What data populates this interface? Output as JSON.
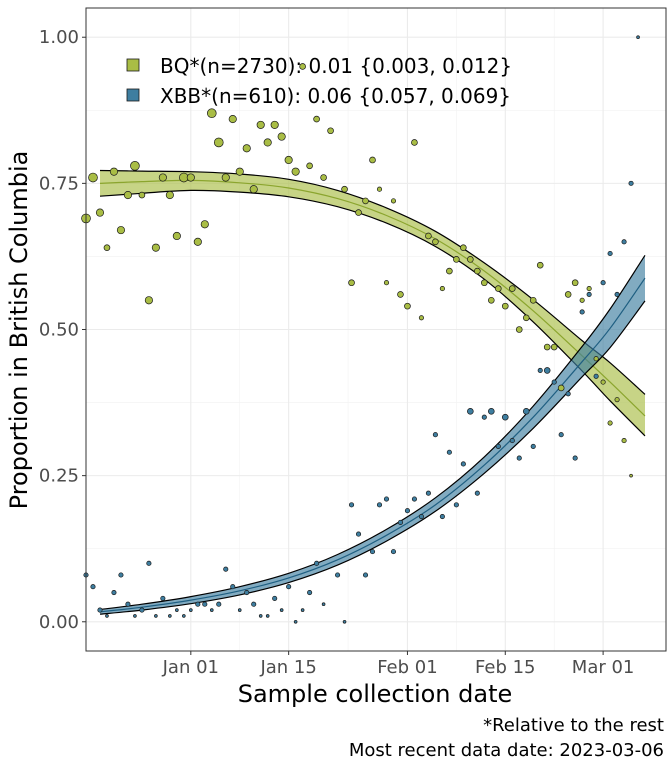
{
  "chart_data": {
    "type": "scatter",
    "xlabel": "Sample collection date",
    "ylabel": "Proportion in British Columbia",
    "x_tick_labels": [
      "Jan 01",
      "Jan 15",
      "Feb 01",
      "Feb 15",
      "Mar 01"
    ],
    "x_ticks": [
      "2023-01-01",
      "2023-01-15",
      "2023-02-01",
      "2023-02-15",
      "2023-03-01"
    ],
    "x_range": [
      "2022-12-17",
      "2023-03-10"
    ],
    "y_tick_labels": [
      "0.00",
      "0.25",
      "0.50",
      "0.75",
      "1.00"
    ],
    "y_ticks": [
      0,
      0.25,
      0.5,
      0.75,
      1.0
    ],
    "ylim": [
      -0.05,
      1.05
    ],
    "grid": true,
    "legend_position": "top-left",
    "captions": [
      "*Relative to the rest",
      "Most recent data date: 2023-03-06"
    ],
    "series": [
      {
        "name": "BQ*(n=2730): 0.01 {0.003, 0.012}",
        "fill_color": "#a9bd45",
        "point_color": "#a9bd45",
        "line_color": "#8ba52e",
        "fit": [
          {
            "x": "2022-12-19",
            "y": 0.75,
            "lo": 0.728,
            "hi": 0.772
          },
          {
            "x": "2022-12-25",
            "y": 0.753,
            "lo": 0.733,
            "hi": 0.771
          },
          {
            "x": "2023-01-01",
            "y": 0.755,
            "lo": 0.738,
            "hi": 0.77
          },
          {
            "x": "2023-01-08",
            "y": 0.751,
            "lo": 0.735,
            "hi": 0.766
          },
          {
            "x": "2023-01-15",
            "y": 0.742,
            "lo": 0.727,
            "hi": 0.757
          },
          {
            "x": "2023-01-22",
            "y": 0.724,
            "lo": 0.71,
            "hi": 0.738
          },
          {
            "x": "2023-01-29",
            "y": 0.695,
            "lo": 0.682,
            "hi": 0.708
          },
          {
            "x": "2023-02-05",
            "y": 0.655,
            "lo": 0.642,
            "hi": 0.668
          },
          {
            "x": "2023-02-12",
            "y": 0.6,
            "lo": 0.586,
            "hi": 0.614
          },
          {
            "x": "2023-02-19",
            "y": 0.532,
            "lo": 0.513,
            "hi": 0.551
          },
          {
            "x": "2023-02-26",
            "y": 0.455,
            "lo": 0.429,
            "hi": 0.481
          },
          {
            "x": "2023-03-02",
            "y": 0.41,
            "lo": 0.378,
            "hi": 0.443
          },
          {
            "x": "2023-03-07",
            "y": 0.352,
            "lo": 0.318,
            "hi": 0.389
          }
        ],
        "points": [
          {
            "x": "2022-12-17",
            "y": 0.69,
            "s": 5
          },
          {
            "x": "2022-12-18",
            "y": 0.76,
            "s": 5
          },
          {
            "x": "2022-12-19",
            "y": 0.7,
            "s": 4
          },
          {
            "x": "2022-12-20",
            "y": 0.64,
            "s": 3
          },
          {
            "x": "2022-12-21",
            "y": 0.77,
            "s": 4
          },
          {
            "x": "2022-12-22",
            "y": 0.67,
            "s": 4
          },
          {
            "x": "2022-12-23",
            "y": 0.73,
            "s": 4
          },
          {
            "x": "2022-12-24",
            "y": 0.78,
            "s": 5
          },
          {
            "x": "2022-12-25",
            "y": 0.73,
            "s": 3
          },
          {
            "x": "2022-12-26",
            "y": 0.55,
            "s": 4
          },
          {
            "x": "2022-12-27",
            "y": 0.64,
            "s": 4
          },
          {
            "x": "2022-12-28",
            "y": 0.76,
            "s": 4
          },
          {
            "x": "2022-12-29",
            "y": 0.73,
            "s": 4
          },
          {
            "x": "2022-12-30",
            "y": 0.66,
            "s": 4
          },
          {
            "x": "2022-12-31",
            "y": 0.76,
            "s": 5
          },
          {
            "x": "2023-01-01",
            "y": 0.76,
            "s": 4
          },
          {
            "x": "2023-01-02",
            "y": 0.65,
            "s": 4
          },
          {
            "x": "2023-01-03",
            "y": 0.68,
            "s": 4
          },
          {
            "x": "2023-01-04",
            "y": 0.87,
            "s": 5
          },
          {
            "x": "2023-01-05",
            "y": 0.82,
            "s": 5
          },
          {
            "x": "2023-01-06",
            "y": 0.76,
            "s": 4
          },
          {
            "x": "2023-01-07",
            "y": 0.86,
            "s": 4
          },
          {
            "x": "2023-01-08",
            "y": 0.77,
            "s": 4
          },
          {
            "x": "2023-01-09",
            "y": 0.81,
            "s": 4
          },
          {
            "x": "2023-01-10",
            "y": 0.74,
            "s": 4
          },
          {
            "x": "2023-01-11",
            "y": 0.85,
            "s": 4
          },
          {
            "x": "2023-01-12",
            "y": 0.82,
            "s": 4
          },
          {
            "x": "2023-01-13",
            "y": 0.85,
            "s": 4
          },
          {
            "x": "2023-01-14",
            "y": 0.83,
            "s": 4
          },
          {
            "x": "2023-01-15",
            "y": 0.79,
            "s": 4
          },
          {
            "x": "2023-01-16",
            "y": 0.77,
            "s": 4
          },
          {
            "x": "2023-01-17",
            "y": 0.95,
            "s": 3
          },
          {
            "x": "2023-01-18",
            "y": 0.78,
            "s": 3
          },
          {
            "x": "2023-01-19",
            "y": 0.86,
            "s": 3
          },
          {
            "x": "2023-01-20",
            "y": 0.76,
            "s": 3
          },
          {
            "x": "2023-01-21",
            "y": 0.84,
            "s": 3
          },
          {
            "x": "2023-01-23",
            "y": 0.74,
            "s": 3
          },
          {
            "x": "2023-01-24",
            "y": 0.58,
            "s": 3
          },
          {
            "x": "2023-01-25",
            "y": 0.7,
            "s": 3
          },
          {
            "x": "2023-01-26",
            "y": 0.72,
            "s": 3
          },
          {
            "x": "2023-01-27",
            "y": 0.79,
            "s": 3
          },
          {
            "x": "2023-01-28",
            "y": 0.74,
            "s": 2
          },
          {
            "x": "2023-01-29",
            "y": 0.58,
            "s": 2
          },
          {
            "x": "2023-01-30",
            "y": 0.72,
            "s": 2
          },
          {
            "x": "2023-01-31",
            "y": 0.56,
            "s": 3
          },
          {
            "x": "2023-02-01",
            "y": 0.54,
            "s": 3
          },
          {
            "x": "2023-02-02",
            "y": 0.82,
            "s": 3
          },
          {
            "x": "2023-02-03",
            "y": 0.52,
            "s": 2
          },
          {
            "x": "2023-02-04",
            "y": 0.66,
            "s": 3
          },
          {
            "x": "2023-02-05",
            "y": 0.65,
            "s": 3
          },
          {
            "x": "2023-02-06",
            "y": 0.57,
            "s": 2
          },
          {
            "x": "2023-02-07",
            "y": 0.6,
            "s": 3
          },
          {
            "x": "2023-02-08",
            "y": 0.62,
            "s": 3
          },
          {
            "x": "2023-02-09",
            "y": 0.64,
            "s": 3
          },
          {
            "x": "2023-02-10",
            "y": 0.62,
            "s": 3
          },
          {
            "x": "2023-02-11",
            "y": 0.6,
            "s": 3
          },
          {
            "x": "2023-02-12",
            "y": 0.58,
            "s": 3
          },
          {
            "x": "2023-02-13",
            "y": 0.55,
            "s": 3
          },
          {
            "x": "2023-02-14",
            "y": 0.57,
            "s": 3
          },
          {
            "x": "2023-02-15",
            "y": 0.54,
            "s": 3
          },
          {
            "x": "2023-02-16",
            "y": 0.57,
            "s": 3
          },
          {
            "x": "2023-02-17",
            "y": 0.5,
            "s": 3
          },
          {
            "x": "2023-02-18",
            "y": 0.52,
            "s": 3
          },
          {
            "x": "2023-02-19",
            "y": 0.55,
            "s": 3
          },
          {
            "x": "2023-02-20",
            "y": 0.61,
            "s": 3
          },
          {
            "x": "2023-02-21",
            "y": 0.47,
            "s": 3
          },
          {
            "x": "2023-02-22",
            "y": 0.47,
            "s": 3
          },
          {
            "x": "2023-02-23",
            "y": 0.4,
            "s": 3
          },
          {
            "x": "2023-02-24",
            "y": 0.56,
            "s": 3
          },
          {
            "x": "2023-02-25",
            "y": 0.58,
            "s": 3
          },
          {
            "x": "2023-02-26",
            "y": 0.55,
            "s": 2
          },
          {
            "x": "2023-02-27",
            "y": 0.57,
            "s": 2
          },
          {
            "x": "2023-02-28",
            "y": 0.45,
            "s": 2
          },
          {
            "x": "2023-03-01",
            "y": 0.41,
            "s": 2
          },
          {
            "x": "2023-03-02",
            "y": 0.34,
            "s": 2
          },
          {
            "x": "2023-03-03",
            "y": 0.38,
            "s": 2
          },
          {
            "x": "2023-03-04",
            "y": 0.31,
            "s": 2
          },
          {
            "x": "2023-03-05",
            "y": 0.25,
            "s": 1
          }
        ]
      },
      {
        "name": "XBB*(n=610): 0.06 {0.057, 0.069}",
        "fill_color": "#3e7ea0",
        "point_color": "#3e7ea0",
        "line_color": "#1f5f82",
        "fit": [
          {
            "x": "2022-12-19",
            "y": 0.017,
            "lo": 0.013,
            "hi": 0.021
          },
          {
            "x": "2022-12-25",
            "y": 0.025,
            "lo": 0.02,
            "hi": 0.03
          },
          {
            "x": "2023-01-01",
            "y": 0.037,
            "lo": 0.031,
            "hi": 0.043
          },
          {
            "x": "2023-01-08",
            "y": 0.053,
            "lo": 0.046,
            "hi": 0.06
          },
          {
            "x": "2023-01-15",
            "y": 0.075,
            "lo": 0.067,
            "hi": 0.083
          },
          {
            "x": "2023-01-22",
            "y": 0.106,
            "lo": 0.097,
            "hi": 0.115
          },
          {
            "x": "2023-01-29",
            "y": 0.148,
            "lo": 0.138,
            "hi": 0.158
          },
          {
            "x": "2023-02-05",
            "y": 0.2,
            "lo": 0.189,
            "hi": 0.212
          },
          {
            "x": "2023-02-12",
            "y": 0.268,
            "lo": 0.254,
            "hi": 0.282
          },
          {
            "x": "2023-02-19",
            "y": 0.35,
            "lo": 0.331,
            "hi": 0.369
          },
          {
            "x": "2023-02-26",
            "y": 0.445,
            "lo": 0.419,
            "hi": 0.471
          },
          {
            "x": "2023-03-02",
            "y": 0.502,
            "lo": 0.469,
            "hi": 0.535
          },
          {
            "x": "2023-03-07",
            "y": 0.588,
            "lo": 0.549,
            "hi": 0.627
          }
        ],
        "points": [
          {
            "x": "2022-12-17",
            "y": 0.08,
            "s": 2
          },
          {
            "x": "2022-12-18",
            "y": 0.06,
            "s": 2
          },
          {
            "x": "2022-12-19",
            "y": 0.02,
            "s": 2
          },
          {
            "x": "2022-12-20",
            "y": 0.01,
            "s": 1
          },
          {
            "x": "2022-12-21",
            "y": 0.05,
            "s": 2
          },
          {
            "x": "2022-12-22",
            "y": 0.08,
            "s": 2
          },
          {
            "x": "2022-12-23",
            "y": 0.03,
            "s": 2
          },
          {
            "x": "2022-12-24",
            "y": 0.01,
            "s": 1
          },
          {
            "x": "2022-12-25",
            "y": 0.02,
            "s": 2
          },
          {
            "x": "2022-12-26",
            "y": 0.1,
            "s": 2
          },
          {
            "x": "2022-12-27",
            "y": 0.01,
            "s": 1
          },
          {
            "x": "2022-12-28",
            "y": 0.04,
            "s": 2
          },
          {
            "x": "2022-12-29",
            "y": 0.01,
            "s": 1
          },
          {
            "x": "2022-12-30",
            "y": 0.02,
            "s": 1
          },
          {
            "x": "2022-12-31",
            "y": 0.01,
            "s": 1
          },
          {
            "x": "2023-01-01",
            "y": 0.02,
            "s": 1
          },
          {
            "x": "2023-01-02",
            "y": 0.03,
            "s": 2
          },
          {
            "x": "2023-01-03",
            "y": 0.03,
            "s": 2
          },
          {
            "x": "2023-01-04",
            "y": 0.02,
            "s": 1
          },
          {
            "x": "2023-01-05",
            "y": 0.03,
            "s": 2
          },
          {
            "x": "2023-01-06",
            "y": 0.09,
            "s": 2
          },
          {
            "x": "2023-01-07",
            "y": 0.06,
            "s": 2
          },
          {
            "x": "2023-01-08",
            "y": 0.02,
            "s": 1
          },
          {
            "x": "2023-01-09",
            "y": 0.05,
            "s": 2
          },
          {
            "x": "2023-01-10",
            "y": 0.03,
            "s": 2
          },
          {
            "x": "2023-01-11",
            "y": 0.01,
            "s": 1
          },
          {
            "x": "2023-01-12",
            "y": 0.01,
            "s": 1
          },
          {
            "x": "2023-01-13",
            "y": 0.04,
            "s": 2
          },
          {
            "x": "2023-01-14",
            "y": 0.02,
            "s": 1
          },
          {
            "x": "2023-01-15",
            "y": 0.06,
            "s": 2
          },
          {
            "x": "2023-01-16",
            "y": 0.0,
            "s": 1
          },
          {
            "x": "2023-01-17",
            "y": 0.02,
            "s": 1
          },
          {
            "x": "2023-01-18",
            "y": 0.05,
            "s": 2
          },
          {
            "x": "2023-01-19",
            "y": 0.1,
            "s": 2
          },
          {
            "x": "2023-01-20",
            "y": 0.03,
            "s": 1
          },
          {
            "x": "2023-01-22",
            "y": 0.08,
            "s": 2
          },
          {
            "x": "2023-01-23",
            "y": 0.0,
            "s": 1
          },
          {
            "x": "2023-01-24",
            "y": 0.2,
            "s": 2
          },
          {
            "x": "2023-01-25",
            "y": 0.15,
            "s": 2
          },
          {
            "x": "2023-01-26",
            "y": 0.08,
            "s": 2
          },
          {
            "x": "2023-01-27",
            "y": 0.12,
            "s": 2
          },
          {
            "x": "2023-01-28",
            "y": 0.2,
            "s": 2
          },
          {
            "x": "2023-01-29",
            "y": 0.21,
            "s": 2
          },
          {
            "x": "2023-01-30",
            "y": 0.12,
            "s": 2
          },
          {
            "x": "2023-01-31",
            "y": 0.17,
            "s": 2
          },
          {
            "x": "2023-02-01",
            "y": 0.19,
            "s": 2
          },
          {
            "x": "2023-02-02",
            "y": 0.21,
            "s": 2
          },
          {
            "x": "2023-02-03",
            "y": 0.18,
            "s": 2
          },
          {
            "x": "2023-02-04",
            "y": 0.22,
            "s": 2
          },
          {
            "x": "2023-02-05",
            "y": 0.32,
            "s": 2
          },
          {
            "x": "2023-02-06",
            "y": 0.18,
            "s": 2
          },
          {
            "x": "2023-02-07",
            "y": 0.29,
            "s": 2
          },
          {
            "x": "2023-02-08",
            "y": 0.2,
            "s": 2
          },
          {
            "x": "2023-02-09",
            "y": 0.27,
            "s": 2
          },
          {
            "x": "2023-02-10",
            "y": 0.36,
            "s": 3
          },
          {
            "x": "2023-02-11",
            "y": 0.22,
            "s": 2
          },
          {
            "x": "2023-02-12",
            "y": 0.35,
            "s": 2
          },
          {
            "x": "2023-02-13",
            "y": 0.36,
            "s": 3
          },
          {
            "x": "2023-02-14",
            "y": 0.3,
            "s": 2
          },
          {
            "x": "2023-02-15",
            "y": 0.35,
            "s": 3
          },
          {
            "x": "2023-02-16",
            "y": 0.31,
            "s": 2
          },
          {
            "x": "2023-02-17",
            "y": 0.28,
            "s": 2
          },
          {
            "x": "2023-02-18",
            "y": 0.36,
            "s": 3
          },
          {
            "x": "2023-02-19",
            "y": 0.3,
            "s": 2
          },
          {
            "x": "2023-02-20",
            "y": 0.43,
            "s": 2
          },
          {
            "x": "2023-02-21",
            "y": 0.43,
            "s": 3
          },
          {
            "x": "2023-02-22",
            "y": 0.41,
            "s": 2
          },
          {
            "x": "2023-02-23",
            "y": 0.32,
            "s": 2
          },
          {
            "x": "2023-02-24",
            "y": 0.39,
            "s": 2
          },
          {
            "x": "2023-02-25",
            "y": 0.28,
            "s": 2
          },
          {
            "x": "2023-02-26",
            "y": 0.53,
            "s": 2
          },
          {
            "x": "2023-02-27",
            "y": 0.56,
            "s": 2
          },
          {
            "x": "2023-02-28",
            "y": 0.42,
            "s": 2
          },
          {
            "x": "2023-03-01",
            "y": 0.58,
            "s": 2
          },
          {
            "x": "2023-03-02",
            "y": 0.63,
            "s": 2
          },
          {
            "x": "2023-03-03",
            "y": 0.56,
            "s": 2
          },
          {
            "x": "2023-03-04",
            "y": 0.65,
            "s": 2
          },
          {
            "x": "2023-03-05",
            "y": 0.75,
            "s": 2
          },
          {
            "x": "2023-03-06",
            "y": 1.0,
            "s": 1
          }
        ]
      }
    ]
  }
}
